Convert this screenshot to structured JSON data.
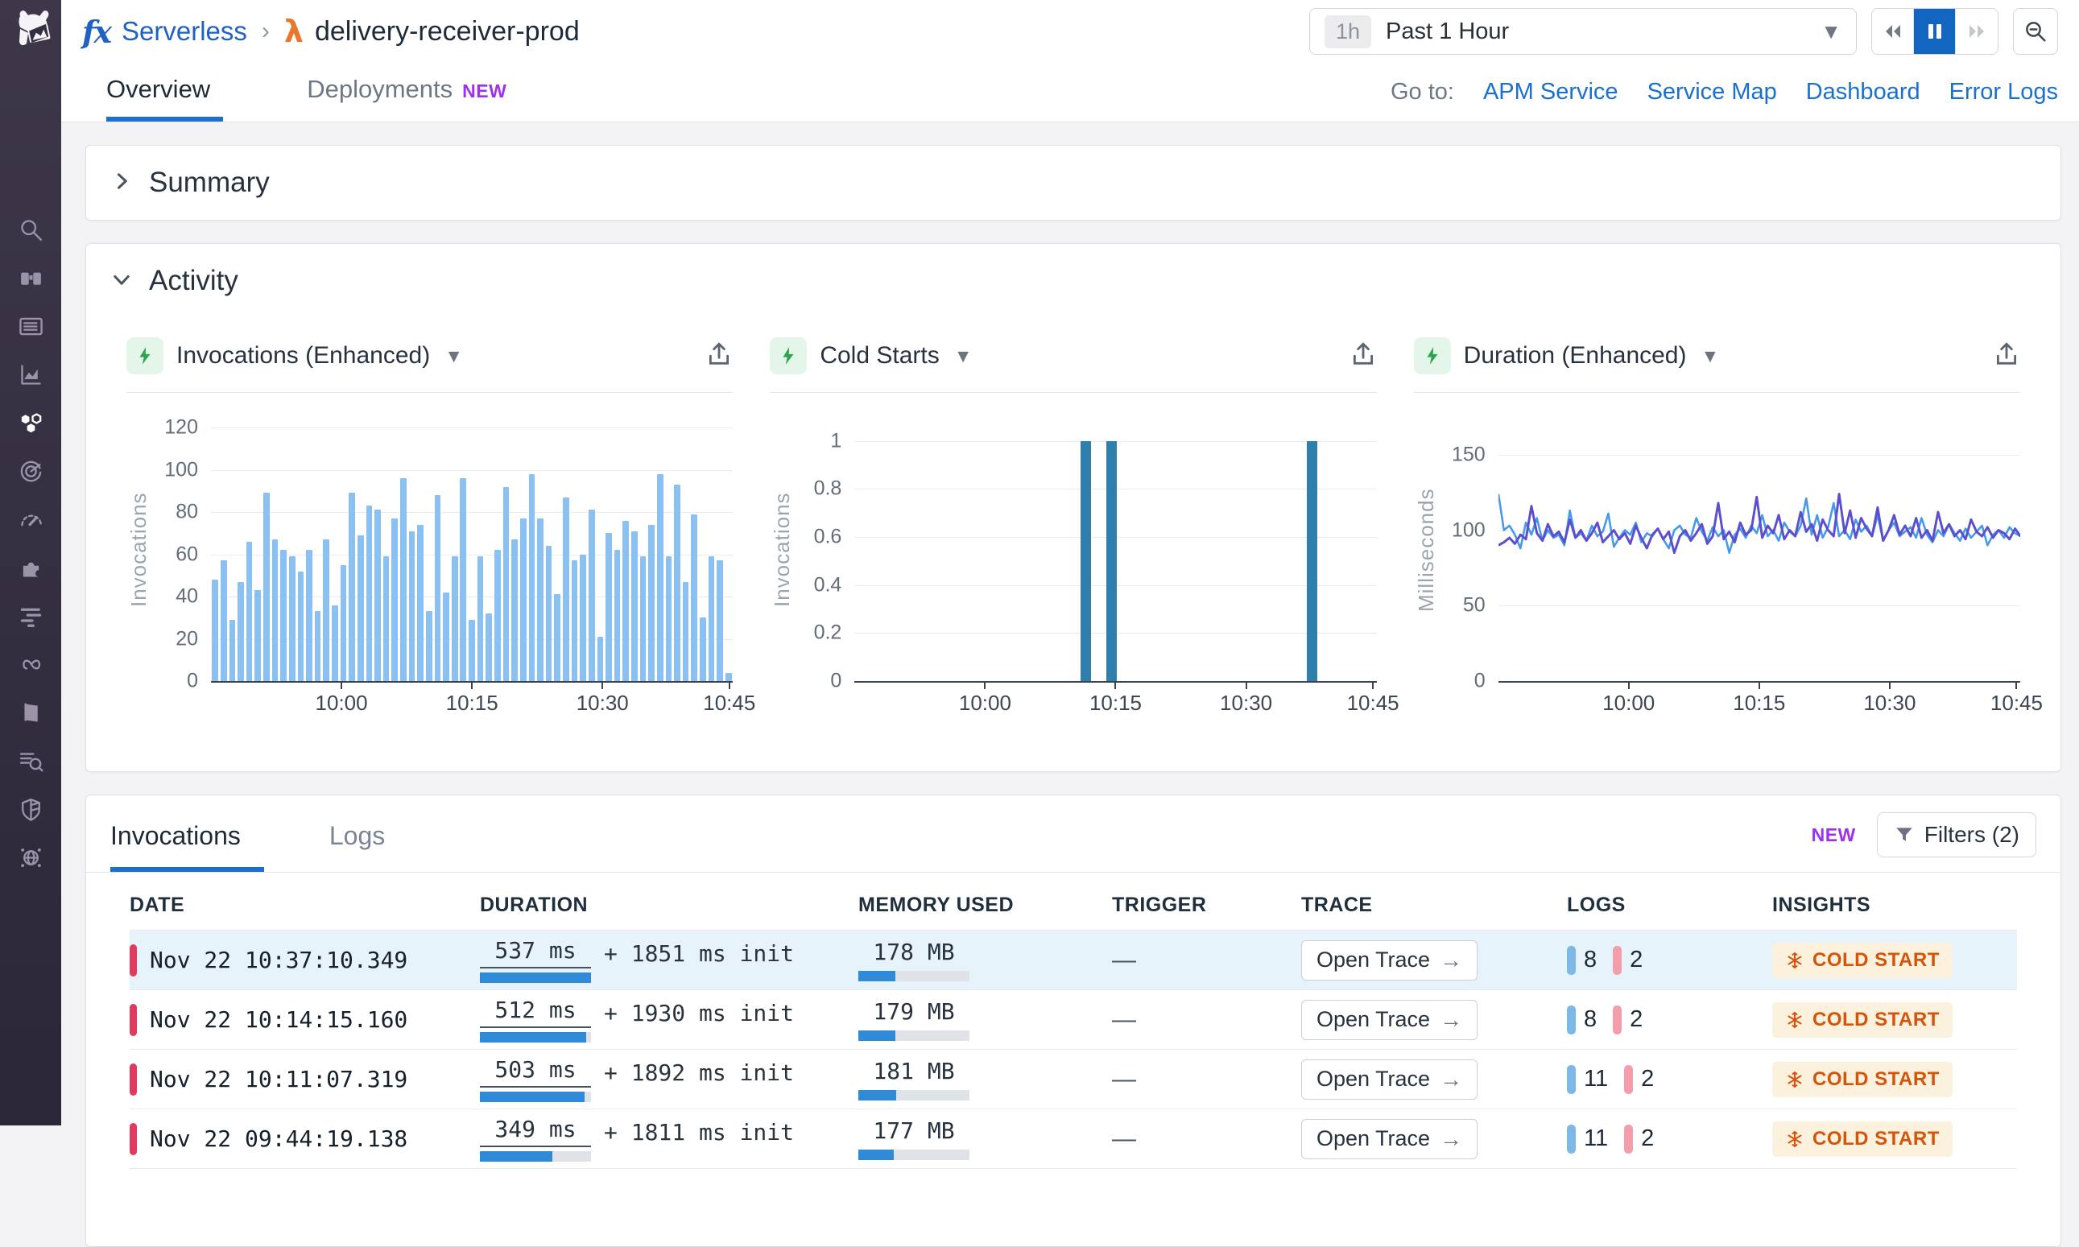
{
  "header": {
    "breadcrumb": {
      "app": "Serverless",
      "separator": "›",
      "entity": "delivery-receiver-prod",
      "fx_glyph": "fx",
      "lambda_glyph": "λ"
    },
    "time_picker": {
      "badge": "1h",
      "label": "Past 1 Hour"
    }
  },
  "tabs": {
    "items": [
      {
        "label": "Overview",
        "active": true
      },
      {
        "label": "Deployments",
        "badge": "NEW"
      }
    ],
    "goto_label": "Go to:",
    "links": [
      "APM Service",
      "Service Map",
      "Dashboard",
      "Error Logs"
    ]
  },
  "sidebar": {
    "icons": [
      "search",
      "watchdog-binoculars",
      "dashboards",
      "metrics",
      "apm-services",
      "synthetics",
      "monitors-gauge",
      "integrations",
      "pipelines",
      "ci-cd",
      "notebooks",
      "log-explorer",
      "security",
      "network-map"
    ],
    "active": "apm-services"
  },
  "summary": {
    "title": "Summary"
  },
  "activity": {
    "title": "Activity"
  },
  "chart_data": [
    {
      "type": "bar",
      "title": "Invocations (Enhanced)",
      "ylabel": "Invocations",
      "ylim": [
        0,
        125
      ],
      "yticks": [
        0,
        20,
        40,
        60,
        80,
        100,
        120
      ],
      "xticks": [
        {
          "pct": 25,
          "label": "10:00"
        },
        {
          "pct": 50,
          "label": "10:15"
        },
        {
          "pct": 75,
          "label": "10:30"
        },
        {
          "pct": 99.3,
          "label": "10:45"
        }
      ],
      "bar_color": "#8ac1f2",
      "values": [
        48,
        57,
        29,
        47,
        66,
        43,
        89,
        67,
        62,
        59,
        52,
        62,
        33,
        67,
        36,
        55,
        89,
        69,
        83,
        81,
        59,
        77,
        96,
        71,
        74,
        33,
        88,
        42,
        59,
        96,
        29,
        59,
        32,
        62,
        92,
        67,
        77,
        98,
        77,
        64,
        41,
        87,
        57,
        60,
        81,
        21,
        70,
        62,
        76,
        71,
        59,
        74,
        98,
        59,
        93,
        47,
        79,
        30,
        59,
        57,
        4
      ]
    },
    {
      "type": "bar-sparse",
      "title": "Cold Starts",
      "ylabel": "Invocations",
      "ylim": [
        0,
        1.1
      ],
      "yticks": [
        0,
        0.2,
        0.4,
        0.6,
        0.8,
        1
      ],
      "xticks": [
        {
          "pct": 25,
          "label": "10:00"
        },
        {
          "pct": 50,
          "label": "10:15"
        },
        {
          "pct": 75,
          "label": "10:30"
        },
        {
          "pct": 99.3,
          "label": "10:45"
        }
      ],
      "bar_color": "#2f7fad",
      "bars": [
        {
          "pct": 43.3,
          "v": 1
        },
        {
          "pct": 48.3,
          "v": 1
        },
        {
          "pct": 86.7,
          "v": 1
        }
      ]
    },
    {
      "type": "line",
      "title": "Duration (Enhanced)",
      "ylabel": "Milliseconds",
      "ylim": [
        0,
        175
      ],
      "yticks": [
        0,
        50,
        100,
        150
      ],
      "xticks": [
        {
          "pct": 25,
          "label": "10:00"
        },
        {
          "pct": 50,
          "label": "10:15"
        },
        {
          "pct": 75,
          "label": "10:30"
        },
        {
          "pct": 99.3,
          "label": "10:45"
        }
      ],
      "series": [
        {
          "name": "duration-blue",
          "color": "#4499e8",
          "values": [
            124,
            100,
            103,
            97,
            88,
            105,
            97,
            108,
            93,
            100,
            95,
            97,
            90,
            113,
            95,
            98,
            93,
            103,
            96,
            99,
            111,
            89,
            95,
            100,
            97,
            105,
            92,
            98,
            96,
            101,
            94,
            88,
            100,
            103,
            97,
            95,
            108,
            99,
            93,
            102,
            96,
            100,
            85,
            97,
            101,
            95,
            103,
            98,
            110,
            96,
            100,
            93,
            105,
            99,
            96,
            103,
            121,
            97,
            110,
            95,
            102,
            118,
            96,
            100,
            94,
            107,
            99,
            103,
            96,
            110,
            93,
            100,
            105,
            96,
            99,
            102,
            95,
            108,
            97,
            92,
            100,
            96,
            104,
            98,
            93,
            101,
            95,
            99,
            103,
            90,
            97,
            100,
            95,
            102,
            98,
            96
          ]
        },
        {
          "name": "duration-purple",
          "color": "#5b4fcf",
          "values": [
            90,
            92,
            95,
            91,
            97,
            94,
            116,
            98,
            93,
            104,
            96,
            99,
            92,
            107,
            95,
            100,
            93,
            98,
            105,
            92,
            96,
            100,
            94,
            98,
            91,
            103,
            95,
            88,
            97,
            101,
            94,
            99,
            85,
            96,
            100,
            93,
            98,
            104,
            91,
            96,
            118,
            94,
            99,
            92,
            105,
            97,
            100,
            122,
            95,
            103,
            98,
            110,
            94,
            100,
            96,
            112,
            99,
            104,
            93,
            107,
            100,
            96,
            124,
            98,
            113,
            95,
            108,
            101,
            96,
            115,
            93,
            100,
            110,
            97,
            103,
            96,
            108,
            95,
            100,
            93,
            112,
            98,
            104,
            96,
            100,
            94,
            107,
            99,
            96,
            102,
            95,
            100,
            98,
            94,
            101,
            96
          ]
        }
      ]
    }
  ],
  "table": {
    "tabs": [
      {
        "label": "Invocations",
        "active": true
      },
      {
        "label": "Logs"
      }
    ],
    "new_badge": "NEW",
    "filters_label": "Filters (2)",
    "columns": [
      "DATE",
      "DURATION",
      "MEMORY USED",
      "TRIGGER",
      "TRACE",
      "LOGS",
      "INSIGHTS"
    ],
    "rows": [
      {
        "date": "Nov 22 10:37:10.349",
        "duration": "537 ms",
        "duration_fill": 100,
        "init": "+ 1851 ms init",
        "memory": "178 MB",
        "memory_fill": 33,
        "trigger": "—",
        "trace": "Open Trace",
        "trace_arrow": "→",
        "logs": [
          {
            "count": "8",
            "color": "blue"
          },
          {
            "count": "2",
            "color": "pink"
          }
        ],
        "insight": "COLD START",
        "highlighted": true
      },
      {
        "date": "Nov 22 10:14:15.160",
        "duration": "512 ms",
        "duration_fill": 96,
        "init": "+ 1930 ms init",
        "memory": "179 MB",
        "memory_fill": 33,
        "trigger": "—",
        "trace": "Open Trace",
        "trace_arrow": "→",
        "logs": [
          {
            "count": "8",
            "color": "blue"
          },
          {
            "count": "2",
            "color": "pink"
          }
        ],
        "insight": "COLD START",
        "highlighted": false
      },
      {
        "date": "Nov 22 10:11:07.319",
        "duration": "503 ms",
        "duration_fill": 94,
        "init": "+ 1892 ms init",
        "memory": "181 MB",
        "memory_fill": 34,
        "trigger": "—",
        "trace": "Open Trace",
        "trace_arrow": "→",
        "logs": [
          {
            "count": "11",
            "color": "blue"
          },
          {
            "count": "2",
            "color": "pink"
          }
        ],
        "insight": "COLD START",
        "highlighted": false
      },
      {
        "date": "Nov 22 09:44:19.138",
        "duration": "349 ms",
        "duration_fill": 65,
        "init": "+ 1811 ms init",
        "memory": "177 MB",
        "memory_fill": 32,
        "trigger": "—",
        "trace": "Open Trace",
        "trace_arrow": "→",
        "logs": [
          {
            "count": "11",
            "color": "blue"
          },
          {
            "count": "2",
            "color": "pink"
          }
        ],
        "insight": "COLD START",
        "highlighted": false
      }
    ]
  },
  "colors": {
    "accent_blue": "#1a70d0",
    "link_blue": "#1a70d0",
    "new_purple": "#9e30f0",
    "bar_light_blue": "#8ac1f2",
    "cold_start_bar": "#2f7fad",
    "line_blue": "#4499e8",
    "line_purple": "#5b4fcf",
    "severity_red": "#e13a5e",
    "insight_orange": "#d4540a",
    "insight_bg": "#fcf1dd",
    "sidebar_bg": "#332e40",
    "pause_active": "#1266c2"
  }
}
